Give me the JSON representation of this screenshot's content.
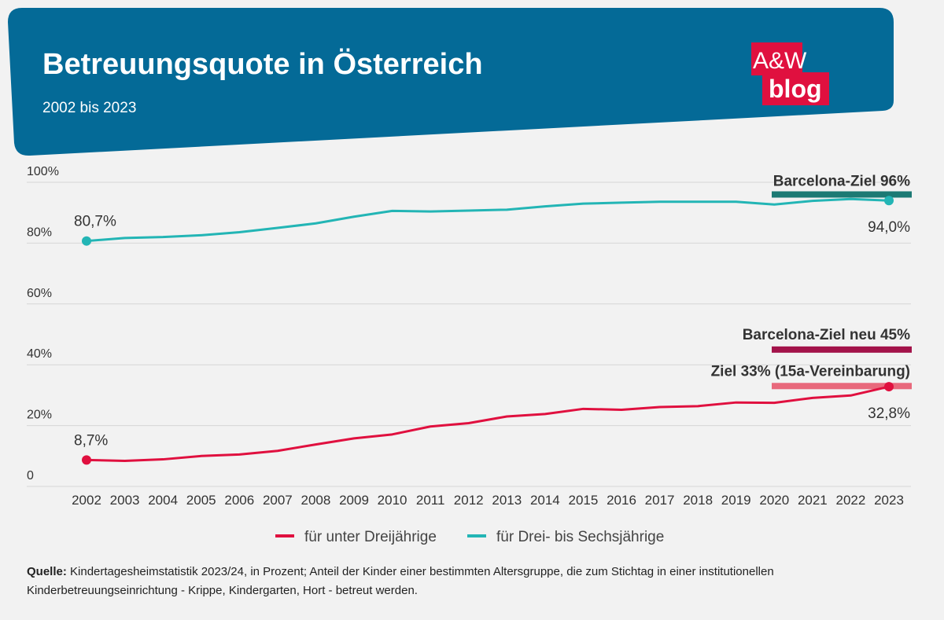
{
  "header": {
    "title": "Betreuungsquote in Österreich",
    "subtitle": "2002 bis 2023"
  },
  "logo": {
    "line1": "A&W",
    "line2": "blog"
  },
  "colors": {
    "header_bg": "#046a97",
    "under3": "#e0103f",
    "three_to_six": "#23b5b5",
    "target_96": "#1c7a74",
    "target_45": "#a3134a",
    "target_33": "#e8697c",
    "logo_red": "#e0103f"
  },
  "chart_data": {
    "type": "line",
    "x": [
      2002,
      2003,
      2004,
      2005,
      2006,
      2007,
      2008,
      2009,
      2010,
      2011,
      2012,
      2013,
      2014,
      2015,
      2016,
      2017,
      2018,
      2019,
      2020,
      2021,
      2022,
      2023
    ],
    "x_tick_labels": [
      "2002",
      "2003",
      "2004",
      "2005",
      "2006",
      "2007",
      "2008",
      "2009",
      "2010",
      "2011",
      "2012",
      "2013",
      "2014",
      "2015",
      "2016",
      "2017",
      "2018",
      "2019",
      "2020",
      "2021",
      "2022",
      "2023"
    ],
    "ylim": [
      0,
      100
    ],
    "y_tick_labels": [
      "0",
      "20%",
      "40%",
      "60%",
      "80%",
      "100%"
    ],
    "y_tick_values": [
      0,
      20,
      40,
      60,
      80,
      100
    ],
    "grid": true,
    "series": [
      {
        "name": "für unter Dreijährige",
        "color_key": "under3",
        "values": [
          8.7,
          8.4,
          8.9,
          10.0,
          10.5,
          11.7,
          13.8,
          15.8,
          17.1,
          19.7,
          20.8,
          23.0,
          23.8,
          25.5,
          25.2,
          26.1,
          26.4,
          27.6,
          27.5,
          29.1,
          29.9,
          32.8
        ],
        "start_label": "8,7%",
        "end_label": "32,8%"
      },
      {
        "name": "für Drei- bis Sechsjährige",
        "color_key": "three_to_six",
        "values": [
          80.7,
          81.7,
          82.0,
          82.6,
          83.6,
          85.0,
          86.5,
          88.7,
          90.6,
          90.4,
          90.7,
          91.0,
          92.1,
          93.0,
          93.3,
          93.6,
          93.6,
          93.6,
          92.7,
          93.9,
          94.5,
          94.0
        ],
        "start_label": "80,7%",
        "end_label": "94,0%"
      }
    ],
    "targets": [
      {
        "label": "Barcelona-Ziel 96%",
        "value": 96,
        "color_key": "target_96"
      },
      {
        "label": "Barcelona-Ziel neu 45%",
        "value": 45,
        "color_key": "target_45"
      },
      {
        "label": "Ziel 33% (15a-Vereinbarung)",
        "value": 33,
        "color_key": "target_33"
      }
    ],
    "legend": [
      "für unter Dreijährige",
      "für Drei- bis Sechsjährige"
    ]
  },
  "source": {
    "label": "Quelle:",
    "text": " Kindertagesheimstatistik 2023/24, in Prozent; Anteil der Kinder einer bestimmten Altersgruppe, die zum Stichtag in einer institutionellen Kinderbetreuungseinrichtung - Krippe, Kindergarten, Hort - betreut werden."
  }
}
